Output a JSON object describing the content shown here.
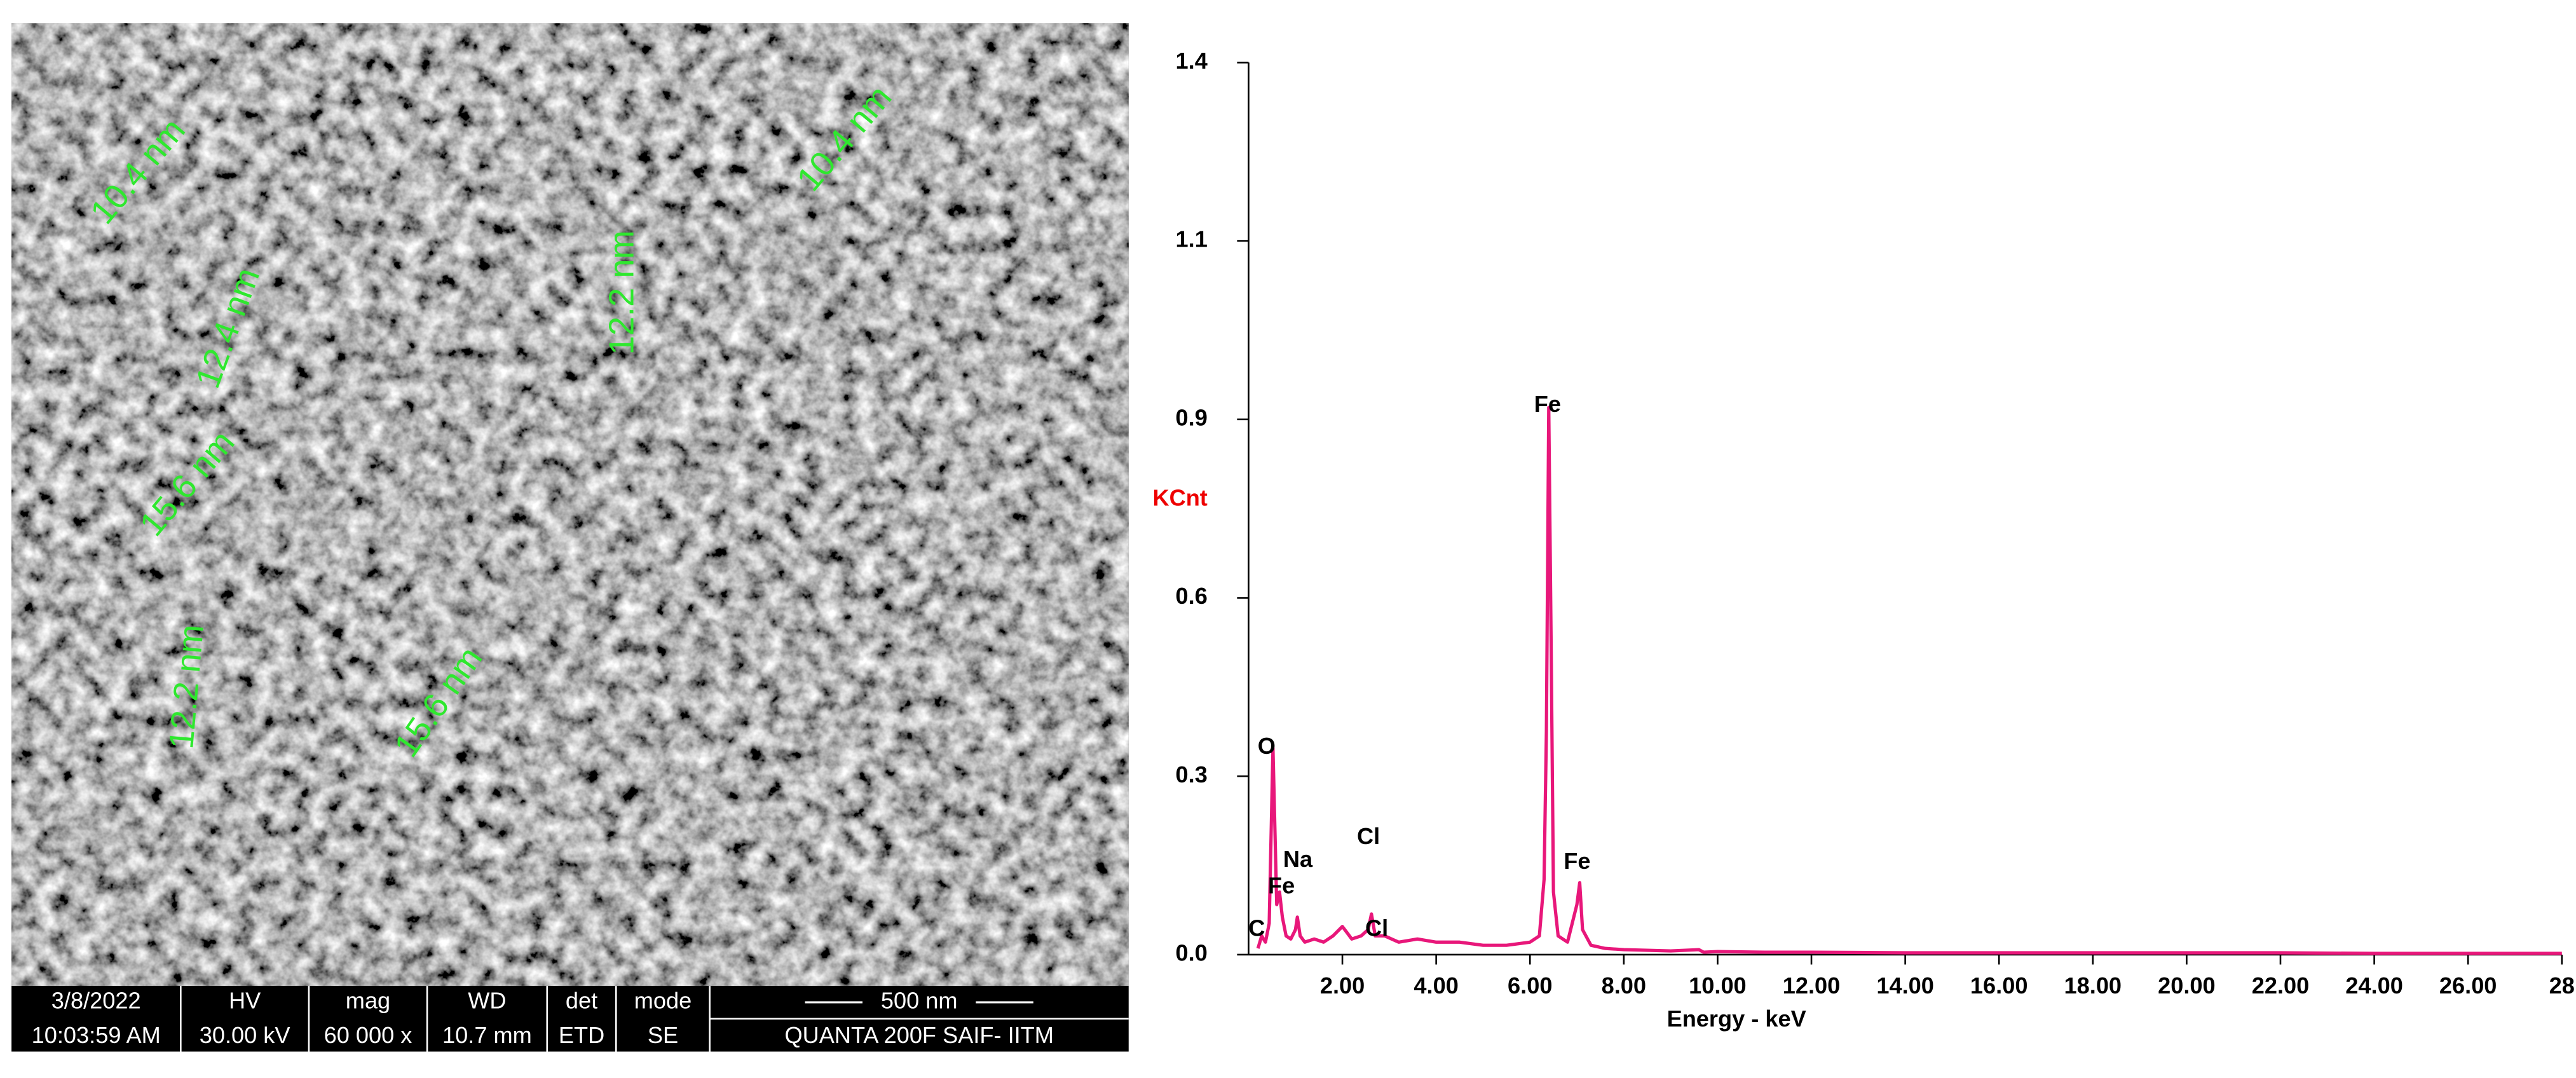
{
  "sem_image": {
    "annotations": [
      "10.4 nm",
      "10.4 nm",
      "12.4 nm",
      "12.2 nm",
      "15.6 nm",
      "12.2 nm",
      "15.6 nm"
    ],
    "info_bar": {
      "top": [
        "3/8/2022",
        "HV",
        "mag",
        "WD",
        "det",
        "mode",
        "500 nm"
      ],
      "bottom": [
        "10:03:59 AM",
        "30.00 kV",
        "60 000 x",
        "10.7 mm",
        "ETD",
        "SE",
        "QUANTA 200F SAIF- IITM"
      ]
    }
  },
  "chart_data": {
    "type": "line",
    "x_label": "Energy - keV",
    "y_label": "KCnt",
    "color": "#e8177a",
    "peak_labels": [
      "C",
      "O",
      "Fe",
      "Na",
      "Cl",
      "Cl",
      "Fe",
      "Fe"
    ],
    "x": [
      0.2,
      0.28,
      0.36,
      0.44,
      0.52,
      0.6,
      0.66,
      0.72,
      0.8,
      0.9,
      1.0,
      1.04,
      1.1,
      1.2,
      1.4,
      1.6,
      1.8,
      2.0,
      2.1,
      2.2,
      2.4,
      2.55,
      2.62,
      2.7,
      2.9,
      3.2,
      3.6,
      4.0,
      4.5,
      5.0,
      5.5,
      6.0,
      6.2,
      6.3,
      6.35,
      6.4,
      6.45,
      6.5,
      6.6,
      6.8,
      7.0,
      7.06,
      7.12,
      7.3,
      7.6,
      8.0,
      9.0,
      9.6,
      9.7,
      10.0,
      11,
      12,
      14,
      16,
      18,
      20,
      22,
      24,
      26,
      28
    ],
    "values": [
      0.01,
      0.03,
      0.02,
      0.05,
      0.33,
      0.08,
      0.1,
      0.06,
      0.03,
      0.025,
      0.04,
      0.06,
      0.03,
      0.02,
      0.025,
      0.02,
      0.03,
      0.045,
      0.035,
      0.025,
      0.03,
      0.04,
      0.065,
      0.03,
      0.03,
      0.02,
      0.025,
      0.02,
      0.02,
      0.015,
      0.015,
      0.02,
      0.03,
      0.12,
      0.357,
      0.874,
      0.5,
      0.1,
      0.03,
      0.02,
      0.08,
      0.115,
      0.04,
      0.015,
      0.01,
      0.008,
      0.006,
      0.008,
      0.004,
      0.005,
      0.004,
      0.004,
      0.003,
      0.003,
      0.003,
      0.003,
      0.003,
      0.002,
      0.002,
      0.002
    ],
    "xlim": [
      0,
      28
    ],
    "ylim": [
      0,
      1.425
    ],
    "xticks": [
      {
        "value": 2,
        "label": "2.00"
      },
      {
        "value": 4,
        "label": "4.00"
      },
      {
        "value": 6,
        "label": "6.00"
      },
      {
        "value": 8,
        "label": "8.00"
      },
      {
        "value": 10,
        "label": "10.00"
      },
      {
        "value": 12,
        "label": "12.00"
      },
      {
        "value": 14,
        "label": "14.00"
      },
      {
        "value": 16,
        "label": "16.00"
      },
      {
        "value": 18,
        "label": "18.00"
      },
      {
        "value": 20,
        "label": "20.00"
      },
      {
        "value": 22,
        "label": "22.00"
      },
      {
        "value": 24,
        "label": "24.00"
      },
      {
        "value": 26,
        "label": "26.00"
      },
      28
    ],
    "yticks": [
      {
        "value": 0,
        "label": "0.0"
      },
      {
        "value": 0.285,
        "label": "0.3"
      },
      {
        "value": 0.57,
        "label": "0.6"
      },
      {
        "value": 0.855,
        "label": "0.9"
      },
      {
        "value": 1.14,
        "label": "1.1"
      },
      {
        "value": 1.425,
        "label": "1.4"
      }
    ]
  }
}
